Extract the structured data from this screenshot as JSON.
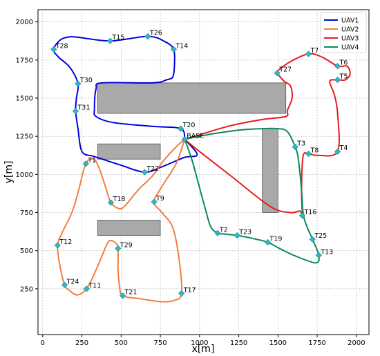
{
  "chart_data": {
    "type": "line",
    "title": "",
    "xlabel": "x[m]",
    "ylabel": "y[m]",
    "xlim": [
      -30,
      2080
    ],
    "ylim": [
      -50,
      2080
    ],
    "xticks": [
      0,
      250,
      500,
      750,
      1000,
      1250,
      1500,
      1750,
      2000
    ],
    "yticks": [
      250,
      500,
      750,
      1000,
      1250,
      1500,
      1750,
      2000
    ],
    "grid": true,
    "legend_position": "top-right",
    "obstacles": [
      {
        "x0": 350,
        "y0": 1400,
        "x1": 1550,
        "y1": 1600
      },
      {
        "x0": 350,
        "y0": 1100,
        "x1": 750,
        "y1": 1200
      },
      {
        "x0": 1400,
        "y0": 750,
        "x1": 1500,
        "y1": 1300
      },
      {
        "x0": 350,
        "y0": 600,
        "x1": 750,
        "y1": 700
      }
    ],
    "targets": [
      {
        "label": "BASE",
        "x": 905,
        "y": 1230
      },
      {
        "label": "T1",
        "x": 275,
        "y": 1070
      },
      {
        "label": "T2",
        "x": 1115,
        "y": 615
      },
      {
        "label": "T3",
        "x": 1610,
        "y": 1180
      },
      {
        "label": "T4",
        "x": 1880,
        "y": 1150
      },
      {
        "label": "T5",
        "x": 1880,
        "y": 1620
      },
      {
        "label": "T6",
        "x": 1880,
        "y": 1710
      },
      {
        "label": "T7",
        "x": 1695,
        "y": 1790
      },
      {
        "label": "T8",
        "x": 1695,
        "y": 1135
      },
      {
        "label": "T9",
        "x": 710,
        "y": 820
      },
      {
        "label": "T11",
        "x": 280,
        "y": 250
      },
      {
        "label": "T12",
        "x": 95,
        "y": 535
      },
      {
        "label": "T13",
        "x": 1760,
        "y": 470
      },
      {
        "label": "T14",
        "x": 835,
        "y": 1820
      },
      {
        "label": "T15",
        "x": 430,
        "y": 1875
      },
      {
        "label": "T16",
        "x": 1655,
        "y": 730
      },
      {
        "label": "T17",
        "x": 885,
        "y": 220
      },
      {
        "label": "T18",
        "x": 435,
        "y": 815
      },
      {
        "label": "T19",
        "x": 1435,
        "y": 555
      },
      {
        "label": "T20",
        "x": 880,
        "y": 1300
      },
      {
        "label": "T21",
        "x": 510,
        "y": 205
      },
      {
        "label": "T22",
        "x": 650,
        "y": 1015
      },
      {
        "label": "T23",
        "x": 1240,
        "y": 600
      },
      {
        "label": "T24",
        "x": 140,
        "y": 275
      },
      {
        "label": "T25",
        "x": 1720,
        "y": 575
      },
      {
        "label": "T26",
        "x": 670,
        "y": 1905
      },
      {
        "label": "T27",
        "x": 1495,
        "y": 1665
      },
      {
        "label": "T28",
        "x": 70,
        "y": 1820
      },
      {
        "label": "T29",
        "x": 480,
        "y": 515
      },
      {
        "label": "T30",
        "x": 225,
        "y": 1595
      },
      {
        "label": "T31",
        "x": 210,
        "y": 1415
      }
    ],
    "series": [
      {
        "name": "UAV1",
        "color": "#0000dd",
        "points": [
          [
            905,
            1230
          ],
          [
            880,
            1300
          ],
          [
            700,
            1315
          ],
          [
            450,
            1340
          ],
          [
            340,
            1380
          ],
          [
            330,
            1430
          ],
          [
            340,
            1560
          ],
          [
            380,
            1600
          ],
          [
            700,
            1600
          ],
          [
            790,
            1620
          ],
          [
            830,
            1640
          ],
          [
            840,
            1720
          ],
          [
            835,
            1820
          ],
          [
            780,
            1870
          ],
          [
            670,
            1905
          ],
          [
            430,
            1875
          ],
          [
            220,
            1900
          ],
          [
            160,
            1900
          ],
          [
            110,
            1880
          ],
          [
            70,
            1820
          ],
          [
            100,
            1770
          ],
          [
            175,
            1700
          ],
          [
            225,
            1595
          ],
          [
            215,
            1500
          ],
          [
            210,
            1415
          ],
          [
            225,
            1300
          ],
          [
            250,
            1150
          ],
          [
            320,
            1120
          ],
          [
            380,
            1100
          ],
          [
            500,
            1060
          ],
          [
            650,
            1015
          ],
          [
            760,
            1050
          ],
          [
            900,
            1110
          ],
          [
            985,
            1130
          ],
          [
            905,
            1230
          ]
        ]
      },
      {
        "name": "UAV2",
        "color": "#f07f3c",
        "points": [
          [
            905,
            1230
          ],
          [
            860,
            1190
          ],
          [
            770,
            1090
          ],
          [
            700,
            990
          ],
          [
            610,
            900
          ],
          [
            530,
            800
          ],
          [
            490,
            775
          ],
          [
            435,
            815
          ],
          [
            400,
            920
          ],
          [
            360,
            1040
          ],
          [
            325,
            1100
          ],
          [
            275,
            1070
          ],
          [
            230,
            900
          ],
          [
            190,
            760
          ],
          [
            130,
            630
          ],
          [
            95,
            535
          ],
          [
            110,
            400
          ],
          [
            140,
            275
          ],
          [
            170,
            240
          ],
          [
            220,
            210
          ],
          [
            280,
            250
          ],
          [
            330,
            350
          ],
          [
            380,
            470
          ],
          [
            420,
            560
          ],
          [
            460,
            555
          ],
          [
            480,
            515
          ],
          [
            480,
            380
          ],
          [
            490,
            270
          ],
          [
            510,
            205
          ],
          [
            620,
            185
          ],
          [
            760,
            165
          ],
          [
            840,
            175
          ],
          [
            885,
            220
          ],
          [
            870,
            440
          ],
          [
            830,
            650
          ],
          [
            760,
            750
          ],
          [
            710,
            820
          ],
          [
            760,
            920
          ],
          [
            850,
            1070
          ],
          [
            905,
            1230
          ]
        ]
      },
      {
        "name": "UAV3",
        "color": "#e8191e",
        "points": [
          [
            905,
            1230
          ],
          [
            1000,
            1150
          ],
          [
            1200,
            990
          ],
          [
            1450,
            790
          ],
          [
            1580,
            750
          ],
          [
            1640,
            760
          ],
          [
            1655,
            730
          ],
          [
            1650,
            900
          ],
          [
            1660,
            1120
          ],
          [
            1695,
            1135
          ],
          [
            1750,
            1125
          ],
          [
            1880,
            1150
          ],
          [
            1880,
            1400
          ],
          [
            1860,
            1520
          ],
          [
            1830,
            1610
          ],
          [
            1880,
            1620
          ],
          [
            1930,
            1620
          ],
          [
            1960,
            1660
          ],
          [
            1940,
            1710
          ],
          [
            1880,
            1710
          ],
          [
            1780,
            1770
          ],
          [
            1695,
            1790
          ],
          [
            1580,
            1740
          ],
          [
            1500,
            1680
          ],
          [
            1495,
            1665
          ],
          [
            1540,
            1610
          ],
          [
            1580,
            1580
          ],
          [
            1590,
            1500
          ],
          [
            1560,
            1420
          ],
          [
            1550,
            1380
          ],
          [
            1400,
            1360
          ],
          [
            1200,
            1320
          ],
          [
            1000,
            1260
          ],
          [
            905,
            1230
          ]
        ]
      },
      {
        "name": "UAV4",
        "color": "#0a8a5a",
        "points": [
          [
            905,
            1230
          ],
          [
            1050,
            1260
          ],
          [
            1250,
            1290
          ],
          [
            1400,
            1300
          ],
          [
            1500,
            1300
          ],
          [
            1560,
            1280
          ],
          [
            1610,
            1180
          ],
          [
            1630,
            1100
          ],
          [
            1650,
            900
          ],
          [
            1660,
            750
          ],
          [
            1680,
            670
          ],
          [
            1720,
            575
          ],
          [
            1760,
            470
          ],
          [
            1740,
            420
          ],
          [
            1600,
            470
          ],
          [
            1500,
            520
          ],
          [
            1435,
            555
          ],
          [
            1340,
            580
          ],
          [
            1240,
            600
          ],
          [
            1150,
            610
          ],
          [
            1115,
            615
          ],
          [
            1070,
            660
          ],
          [
            1030,
            800
          ],
          [
            990,
            950
          ],
          [
            950,
            1100
          ],
          [
            905,
            1230
          ]
        ]
      }
    ]
  }
}
